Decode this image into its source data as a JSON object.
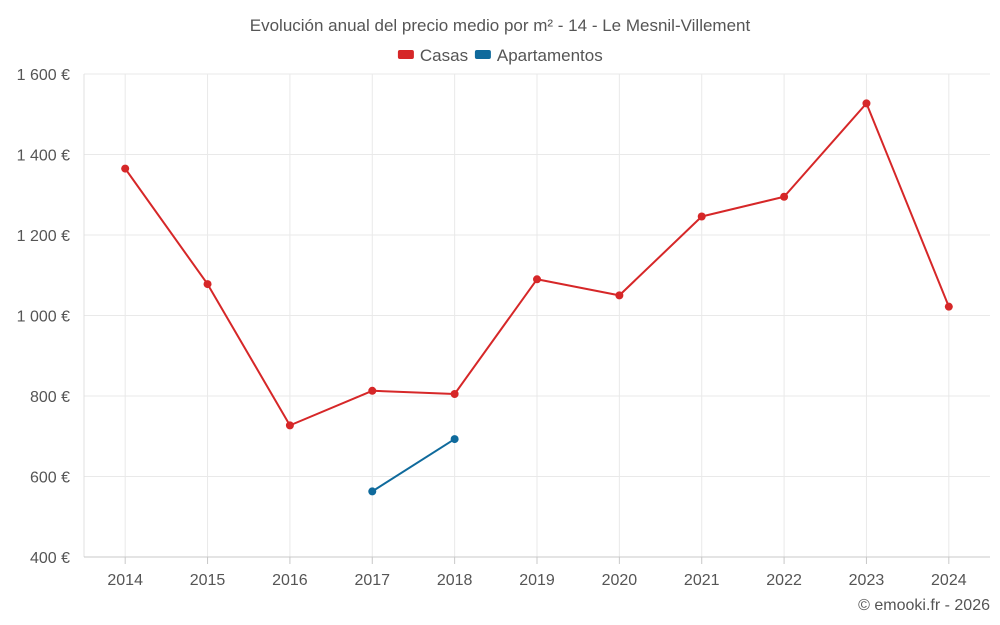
{
  "chart_data": {
    "type": "line",
    "title": "Evolución anual del precio medio por m² - 14 - Le Mesnil-Villement",
    "categories": [
      "2014",
      "2015",
      "2016",
      "2017",
      "2018",
      "2019",
      "2020",
      "2021",
      "2022",
      "2023",
      "2024"
    ],
    "series": [
      {
        "name": "Casas",
        "color": "#d62728",
        "values": [
          1365,
          1078,
          727,
          813,
          805,
          1090,
          1050,
          1246,
          1295,
          1527,
          1022
        ]
      },
      {
        "name": "Apartamentos",
        "color": "#0f6a9c",
        "values": [
          null,
          null,
          null,
          563,
          693,
          null,
          null,
          null,
          null,
          null,
          null
        ]
      }
    ],
    "ylim": [
      400,
      1600
    ],
    "yticks": [
      400,
      600,
      800,
      1000,
      1200,
      1400,
      1600
    ],
    "ytick_labels": [
      "400 €",
      "600 €",
      "800 €",
      "1 000 €",
      "1 200 €",
      "1 400 €",
      "1 600 €"
    ],
    "xlabel": "",
    "ylabel": "",
    "grid": true,
    "legend": "top-center"
  },
  "credit": "© emooki.fr - 2026"
}
